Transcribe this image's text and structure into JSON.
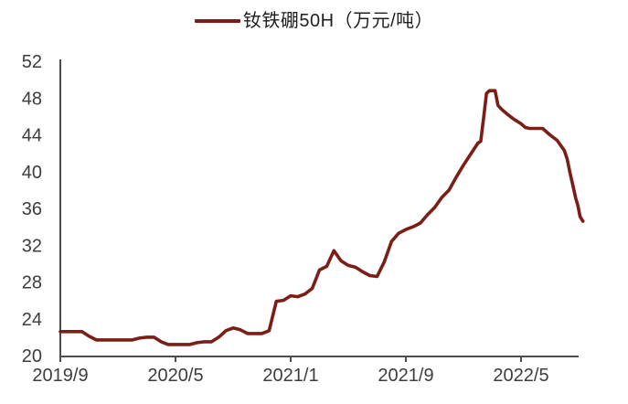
{
  "legend": {
    "label": "钕铁硼50H（万元/吨）"
  },
  "colors": {
    "line": "#7A1E16",
    "axis": "#4d4d4d",
    "tick_text": "#3d3d3d",
    "background": "#ffffff"
  },
  "chart_data": {
    "type": "line",
    "title": "",
    "xlabel": "",
    "ylabel": "万元/吨",
    "grid": false,
    "legend_position": "top-center",
    "ylim": [
      20,
      52
    ],
    "xlim_months_from_2019_09": [
      0,
      36.3
    ],
    "y_ticks": [
      20,
      24,
      28,
      32,
      36,
      40,
      44,
      48,
      52
    ],
    "x_ticks": [
      {
        "m": 0,
        "label": "2019/9"
      },
      {
        "m": 8,
        "label": "2020/5"
      },
      {
        "m": 16,
        "label": "2021/1"
      },
      {
        "m": 24,
        "label": "2021/9"
      },
      {
        "m": 32,
        "label": "2022/5"
      }
    ],
    "series": [
      {
        "name": "钕铁硼50H（万元/吨）",
        "color": "#7A1E16",
        "x_unit": "months since 2019/9",
        "x": [
          0,
          0.5,
          1,
          1.5,
          2,
          2.5,
          3,
          3.5,
          4,
          4.5,
          5,
          5.5,
          6,
          6.5,
          7,
          7.5,
          8,
          8.5,
          9,
          9.5,
          10,
          10.5,
          11,
          11.5,
          12,
          12.5,
          13,
          13.5,
          14,
          14.5,
          15,
          15.5,
          16,
          16.5,
          17,
          17.5,
          18,
          18.5,
          19,
          19.5,
          20,
          20.5,
          21,
          21.5,
          22,
          22.5,
          23,
          23.5,
          24,
          24.5,
          25,
          25.5,
          26,
          26.5,
          27,
          27.5,
          28,
          28.5,
          29,
          29.2,
          29.4,
          29.6,
          29.8,
          30.2,
          30.4,
          30.7,
          31,
          31.5,
          32,
          32.3,
          32.6,
          33,
          33.5,
          34,
          34.5,
          35,
          35.2,
          35.4,
          35.6,
          35.8,
          35.95,
          36.1,
          36.3
        ],
        "values": [
          22.6,
          22.6,
          22.6,
          22.6,
          22.1,
          21.7,
          21.7,
          21.7,
          21.7,
          21.7,
          21.7,
          21.9,
          22.0,
          22.0,
          21.5,
          21.2,
          21.2,
          21.2,
          21.2,
          21.4,
          21.5,
          21.5,
          22.0,
          22.7,
          23.0,
          22.8,
          22.4,
          22.4,
          22.4,
          22.7,
          25.9,
          26.0,
          26.5,
          26.4,
          26.7,
          27.3,
          29.3,
          29.7,
          31.4,
          30.3,
          29.8,
          29.6,
          29.1,
          28.7,
          28.6,
          30.2,
          32.4,
          33.3,
          33.7,
          34.0,
          34.4,
          35.3,
          36.1,
          37.2,
          38.0,
          39.4,
          40.7,
          41.9,
          43.1,
          43.3,
          45.8,
          48.5,
          48.8,
          48.8,
          47.2,
          46.7,
          46.3,
          45.7,
          45.2,
          44.8,
          44.7,
          44.7,
          44.7,
          44.0,
          43.4,
          42.3,
          41.4,
          39.9,
          38.5,
          37.1,
          36.3,
          35.1,
          34.6
        ]
      }
    ]
  }
}
